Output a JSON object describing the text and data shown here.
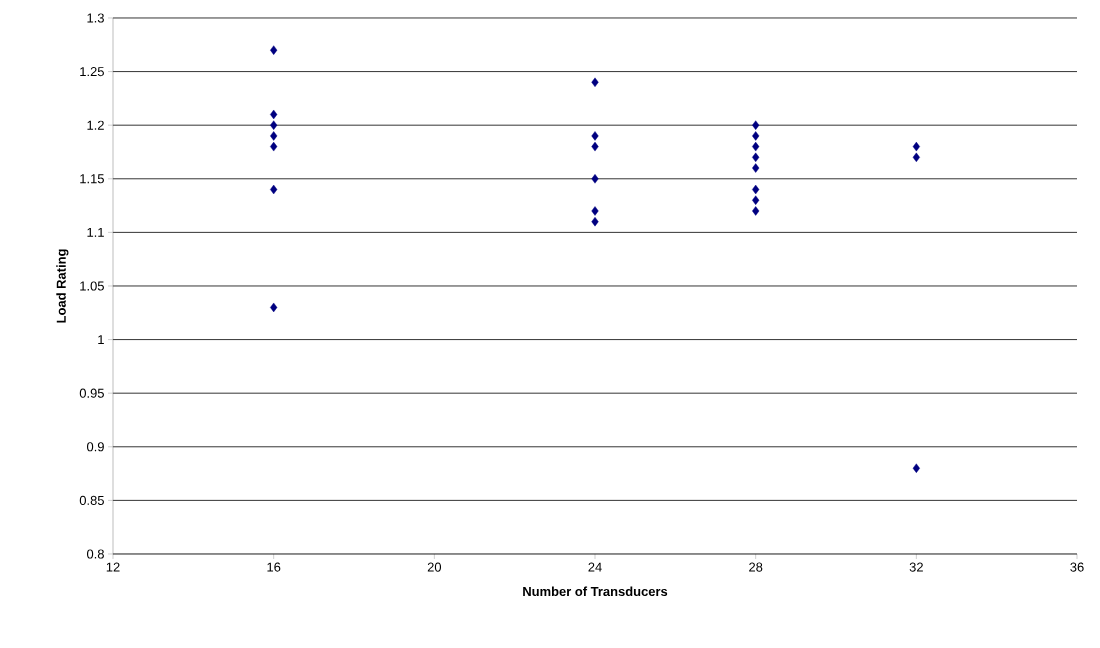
{
  "chart_data": {
    "type": "scatter",
    "xlabel": "Number of Transducers",
    "ylabel": "Load Rating",
    "x": [
      16,
      16,
      16,
      16,
      16,
      16,
      16,
      24,
      24,
      24,
      24,
      24,
      24,
      28,
      28,
      28,
      28,
      28,
      28,
      28,
      28,
      32,
      32,
      32
    ],
    "values": [
      1.27,
      1.21,
      1.2,
      1.19,
      1.18,
      1.14,
      1.03,
      1.24,
      1.19,
      1.18,
      1.15,
      1.12,
      1.11,
      1.2,
      1.19,
      1.18,
      1.17,
      1.16,
      1.14,
      1.13,
      1.12,
      1.18,
      1.17,
      0.88
    ],
    "color": "#000080",
    "marker": "diamond",
    "xlim": [
      12,
      36
    ],
    "xticks": [
      12,
      16,
      20,
      24,
      28,
      32,
      36
    ],
    "ylim": [
      0.8,
      1.3
    ],
    "yticks": [
      0.8,
      0.85,
      0.9,
      0.95,
      1,
      1.05,
      1.1,
      1.15,
      1.2,
      1.25,
      1.3
    ],
    "grid": "y"
  }
}
